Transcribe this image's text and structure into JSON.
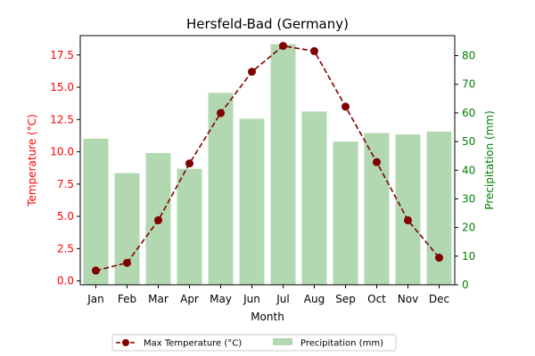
{
  "chart_data": {
    "type": "bar+line",
    "title": "Hersfeld-Bad (Germany)",
    "xlabel": "Month",
    "categories": [
      "Jan",
      "Feb",
      "Mar",
      "Apr",
      "May",
      "Jun",
      "Jul",
      "Aug",
      "Sep",
      "Oct",
      "Nov",
      "Dec"
    ],
    "left_axis": {
      "label": "Temperature (°C)",
      "color": "#ff0000",
      "ylim": [
        -0.3,
        19.0
      ],
      "ticks": [
        "0.0",
        "2.5",
        "5.0",
        "7.5",
        "10.0",
        "12.5",
        "15.0",
        "17.5"
      ],
      "tick_values": [
        0,
        2.5,
        5,
        7.5,
        10,
        12.5,
        15,
        17.5
      ]
    },
    "right_axis": {
      "label": "Precipitation (mm)",
      "color": "#008000",
      "ylim": [
        0,
        87
      ],
      "ticks": [
        "0",
        "10",
        "20",
        "30",
        "40",
        "50",
        "60",
        "70",
        "80"
      ],
      "tick_values": [
        0,
        10,
        20,
        30,
        40,
        50,
        60,
        70,
        80
      ]
    },
    "series": [
      {
        "name": "Max Temperature (°C)",
        "type": "line",
        "axis": "left",
        "color": "#800000",
        "line_style": "dashed",
        "marker": "circle",
        "values": [
          0.8,
          1.4,
          4.7,
          9.1,
          13.0,
          16.2,
          18.2,
          17.8,
          13.5,
          9.2,
          4.7,
          1.8
        ]
      },
      {
        "name": "Precipitation (mm)",
        "type": "bar",
        "axis": "right",
        "color": "#b2d8b2",
        "values": [
          51,
          39,
          46,
          40.5,
          67,
          58,
          84,
          60.5,
          50,
          53,
          52.5,
          53.5
        ]
      }
    ],
    "legend": {
      "placement": "bottom-center",
      "items": [
        "Max Temperature (°C)",
        "Precipitation (mm)"
      ]
    },
    "grid": false
  }
}
